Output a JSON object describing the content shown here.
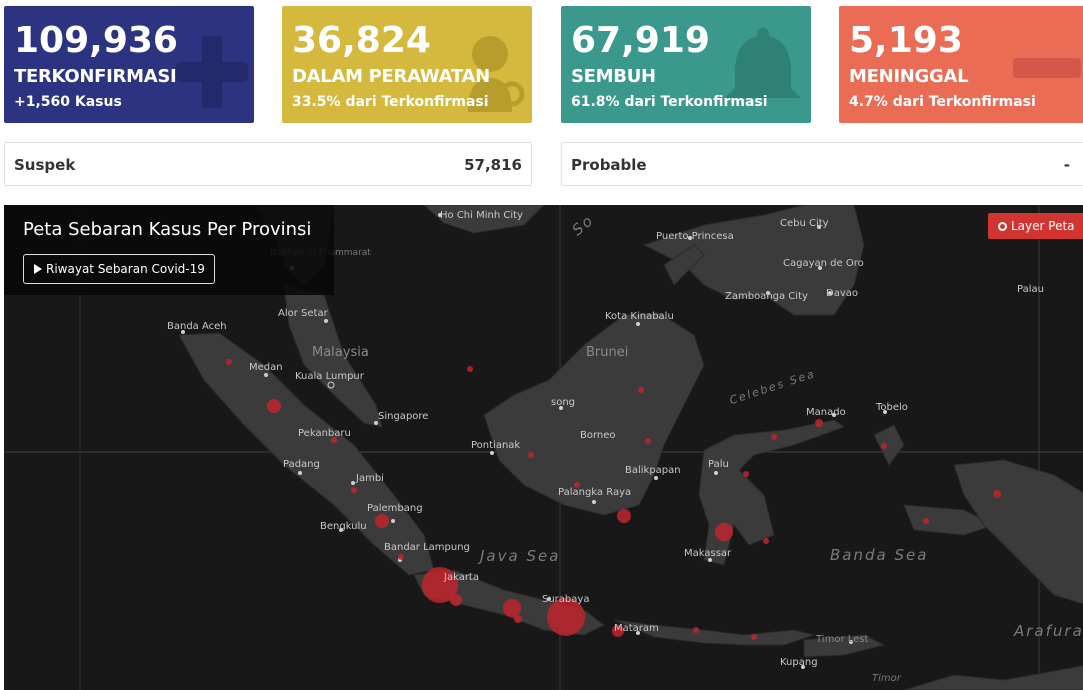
{
  "cards": {
    "confirmed": {
      "number": "109,936",
      "label": "TERKONFIRMASI",
      "sub": "+1,560 Kasus",
      "color": "#2c3380",
      "icon": "plus-icon"
    },
    "treated": {
      "number": "36,824",
      "label": "DALAM PERAWATAN",
      "sub": "33.5% dari Terkonfirmasi",
      "color": "#d4b93e",
      "icon": "patient-icon"
    },
    "recovered": {
      "number": "67,919",
      "label": "SEMBUH",
      "sub": "61.8% dari Terkonfirmasi",
      "color": "#3a988c",
      "icon": "bell-icon"
    },
    "died": {
      "number": "5,193",
      "label": "MENINGGAL",
      "sub": "4.7% dari Terkonfirmasi",
      "color": "#ea6c55",
      "icon": "minus-icon"
    }
  },
  "info": {
    "suspek": {
      "label": "Suspek",
      "value": "57,816"
    },
    "probable": {
      "label": "Probable",
      "value": "-"
    }
  },
  "map": {
    "title": "Peta Sebaran Kasus Per Provinsi",
    "history_button": "Riwayat Sebaran Covid-19",
    "layer_button": "Layer Peta",
    "places": {
      "ho_chi_minh": "Ho Chi Minh City",
      "nakhon": "Nakhon Si Thammarat",
      "puerto_princesa": "Puerto Princesa",
      "cebu": "Cebu City",
      "cagayan": "Cagayan de Oro",
      "zamboanga": "Zamboanga City",
      "davao": "Davao",
      "palau": "Palau",
      "banda_aceh": "Banda Aceh",
      "alor_setar": "Alor Setar",
      "malaysia": "Malaysia",
      "kota_kinabalu": "Kota Kinabalu",
      "brunei": "Brunei",
      "medan": "Medan",
      "kuala_lumpur": "Kuala Lumpur",
      "singapore": "Singapore",
      "song": "song",
      "borneo": "Borneo",
      "manado": "Manado",
      "tobelo": "Tobelo",
      "pekanbaru": "Pekanbaru",
      "pontianak": "Pontianak",
      "padang": "Padang",
      "jambi": "Jambi",
      "balikpapan": "Balikpapan",
      "palu": "Palu",
      "palangka_raya": "Palangka Raya",
      "palembang": "Palembang",
      "bengkulu": "Bengkulu",
      "bandar_lampung": "Bandar Lampung",
      "makassar": "Makassar",
      "jakarta": "Jakarta",
      "surabaya": "Surabaya",
      "mataram": "Mataram",
      "timor_lest": "Timor Lest",
      "kupang": "Kupang",
      "timor": "Timor"
    },
    "seas": {
      "south": "So",
      "celebes": "Celebes Sea",
      "java": "Java Sea",
      "banda": "Banda Sea",
      "arafura": "Arafura Sea"
    }
  }
}
